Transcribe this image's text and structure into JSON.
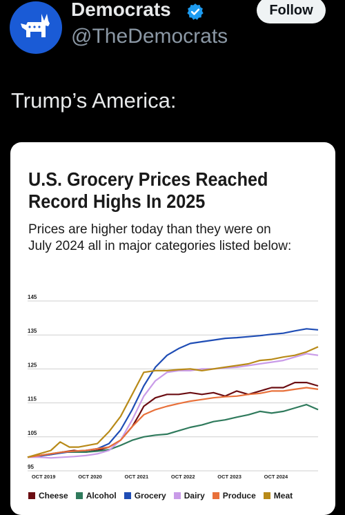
{
  "account": {
    "name": "Democrats",
    "handle": "@TheDemocrats",
    "follow_label": "Follow",
    "avatar_color": "#1a5bd6",
    "verified_color": "#1d9bf0"
  },
  "tweet": {
    "text": "Trump’s America:"
  },
  "chart_data": {
    "type": "line",
    "title": "U.S. Grocery Prices Reached Record Highs In 2025",
    "title_lines": [
      "U.S. Grocery Prices Reached",
      "Record Highs In 2025"
    ],
    "subtitle_lines": [
      "Prices are higher today than they were on",
      "July 2024 all in major categories listed below:"
    ],
    "y_ticks": [
      "145",
      "135",
      "125",
      "115",
      "105",
      "95"
    ],
    "ylim": [
      95,
      145
    ],
    "x_ticks": [
      "OCT 2019",
      "OCT 2020",
      "OCT 2021",
      "OCT 2022",
      "OCT 2023",
      "OCT 2024"
    ],
    "x_start": 2019.5,
    "x_end": 2025.75,
    "grid": true,
    "legend_position": "bottom",
    "series": [
      {
        "name": "Cheese",
        "color": "#6b0d12",
        "x": [
          2019.5,
          2019.75,
          2020,
          2020.25,
          2020.5,
          2020.75,
          2021,
          2021.25,
          2021.5,
          2021.75,
          2021.9,
          2022,
          2022.25,
          2022.5,
          2022.75,
          2023,
          2023.25,
          2023.5,
          2023.75,
          2024,
          2024.25,
          2024.5,
          2024.75,
          2025,
          2025.25,
          2025.5,
          2025.75
        ],
        "y": [
          99,
          99.5,
          99.8,
          100.5,
          101,
          100.5,
          101,
          102,
          104,
          108,
          111.5,
          114,
          116.5,
          117.5,
          117.5,
          118,
          117.5,
          118,
          117,
          118.5,
          117.5,
          118.5,
          119.5,
          119.5,
          121,
          121,
          120
        ]
      },
      {
        "name": "Alcohol",
        "color": "#2f7a5c",
        "x": [
          2019.5,
          2019.75,
          2020,
          2020.25,
          2020.5,
          2020.75,
          2021,
          2021.25,
          2021.5,
          2021.75,
          2022,
          2022.25,
          2022.5,
          2022.75,
          2023,
          2023.25,
          2023.5,
          2023.75,
          2024,
          2024.25,
          2024.5,
          2024.75,
          2025,
          2025.25,
          2025.5,
          2025.75
        ],
        "y": [
          99,
          99.5,
          100,
          100.5,
          100.5,
          100.5,
          100.8,
          101.2,
          102.5,
          104,
          105,
          105.5,
          105.8,
          106.8,
          107.8,
          108.5,
          109.5,
          110,
          110.8,
          111.5,
          112.5,
          112,
          112.5,
          113.5,
          114.5,
          113
        ]
      },
      {
        "name": "Grocery",
        "color": "#1f4db5",
        "x": [
          2019.5,
          2019.75,
          2020,
          2020.25,
          2020.5,
          2020.75,
          2021,
          2021.25,
          2021.5,
          2021.75,
          2022,
          2022.25,
          2022.5,
          2022.75,
          2023,
          2023.25,
          2023.5,
          2023.75,
          2024,
          2024.25,
          2024.5,
          2024.75,
          2025,
          2025.25,
          2025.5,
          2025.75
        ],
        "y": [
          99,
          99.3,
          99.8,
          100.3,
          100.8,
          101,
          101.5,
          103,
          107,
          113,
          120,
          125.5,
          129,
          131,
          132.5,
          133,
          133.5,
          134,
          134.2,
          134.5,
          134.8,
          135.2,
          135.5,
          136.2,
          136.8,
          136.5
        ]
      },
      {
        "name": "Dairy",
        "color": "#c99be8",
        "x": [
          2019.5,
          2019.75,
          2020,
          2020.25,
          2020.5,
          2020.75,
          2021,
          2021.25,
          2021.5,
          2021.75,
          2022,
          2022.25,
          2022.5,
          2022.75,
          2023,
          2023.25,
          2023.5,
          2023.75,
          2024,
          2024.25,
          2024.5,
          2024.75,
          2025,
          2025.25,
          2025.5,
          2025.75
        ],
        "y": [
          99,
          99,
          98.8,
          99,
          99.2,
          99.5,
          100,
          101,
          104,
          110,
          117,
          121.5,
          124,
          124.5,
          124.5,
          125,
          125,
          125.3,
          125.5,
          126,
          126.5,
          127,
          127.5,
          128.5,
          129.5,
          129
        ]
      },
      {
        "name": "Produce",
        "color": "#e8703a",
        "x": [
          2019.5,
          2019.75,
          2020,
          2020.25,
          2020.5,
          2020.75,
          2021,
          2021.25,
          2021.5,
          2021.75,
          2022,
          2022.25,
          2022.5,
          2022.75,
          2023,
          2023.25,
          2023.5,
          2023.75,
          2024,
          2024.25,
          2024.5,
          2024.75,
          2025,
          2025.25,
          2025.5,
          2025.75
        ],
        "y": [
          99,
          99.5,
          100,
          100.5,
          100.8,
          101,
          101.5,
          102,
          104,
          108,
          111.5,
          113,
          114,
          114.8,
          115.5,
          116,
          116.5,
          116.8,
          117,
          117.5,
          117.8,
          118.5,
          118.5,
          119,
          119.5,
          119
        ]
      },
      {
        "name": "Meat",
        "color": "#b88a18",
        "x": [
          2019.5,
          2019.75,
          2020,
          2020.2,
          2020.4,
          2020.6,
          2020.8,
          2021,
          2021.25,
          2021.5,
          2021.75,
          2022,
          2022.25,
          2022.5,
          2022.75,
          2023,
          2023.25,
          2023.5,
          2023.75,
          2024,
          2024.25,
          2024.5,
          2024.75,
          2025,
          2025.25,
          2025.5,
          2025.75
        ],
        "y": [
          99,
          100,
          101,
          103.5,
          102,
          102,
          102.5,
          103,
          106.5,
          111,
          117.5,
          124,
          124.5,
          124.5,
          124.8,
          125,
          124.5,
          125,
          125.5,
          126,
          126.5,
          127.5,
          127.8,
          128.5,
          129,
          130,
          131.5
        ]
      }
    ]
  }
}
